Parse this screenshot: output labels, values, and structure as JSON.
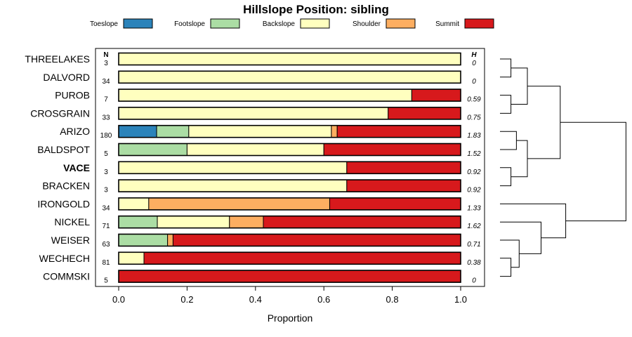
{
  "chart_data": {
    "type": "bar",
    "orientation": "horizontal",
    "stacked": true,
    "title": "Hillslope Position: sibling",
    "xlabel": "Proportion",
    "xlim": [
      0,
      1
    ],
    "x_ticks": [
      "0.0",
      "0.2",
      "0.4",
      "0.6",
      "0.8",
      "1.0"
    ],
    "x_tick_values": [
      0,
      0.2,
      0.4,
      0.6,
      0.8,
      1.0
    ],
    "n_header": "N",
    "h_header": "H",
    "legend_position": "top",
    "legend": [
      {
        "name": "Toeslope",
        "color": "#2b83ba"
      },
      {
        "name": "Footslope",
        "color": "#abdda4"
      },
      {
        "name": "Backslope",
        "color": "#ffffbf"
      },
      {
        "name": "Shoulder",
        "color": "#fdae61"
      },
      {
        "name": "Summit",
        "color": "#d7191c"
      }
    ],
    "categories": [
      {
        "name": "THREELAKES",
        "n": "3",
        "h": "0",
        "bold": false,
        "values": [
          0,
          0,
          1.0,
          0,
          0
        ]
      },
      {
        "name": "DALVORD",
        "n": "34",
        "h": "0",
        "bold": false,
        "values": [
          0,
          0,
          1.0,
          0,
          0
        ]
      },
      {
        "name": "PUROB",
        "n": "7",
        "h": "0.59",
        "bold": false,
        "values": [
          0,
          0,
          0.857,
          0,
          0.143
        ]
      },
      {
        "name": "CROSGRAIN",
        "n": "33",
        "h": "0.75",
        "bold": false,
        "values": [
          0,
          0,
          0.788,
          0,
          0.212
        ]
      },
      {
        "name": "ARIZO",
        "n": "180",
        "h": "1.83",
        "bold": false,
        "values": [
          0.111,
          0.094,
          0.417,
          0.017,
          0.361
        ]
      },
      {
        "name": "BALDSPOT",
        "n": "5",
        "h": "1.52",
        "bold": false,
        "values": [
          0,
          0.2,
          0.4,
          0,
          0.4
        ]
      },
      {
        "name": "VACE",
        "n": "3",
        "h": "0.92",
        "bold": true,
        "values": [
          0,
          0,
          0.667,
          0,
          0.333
        ]
      },
      {
        "name": "BRACKEN",
        "n": "3",
        "h": "0.92",
        "bold": false,
        "values": [
          0,
          0,
          0.667,
          0,
          0.333
        ]
      },
      {
        "name": "IRONGOLD",
        "n": "34",
        "h": "1.33",
        "bold": false,
        "values": [
          0,
          0,
          0.088,
          0.529,
          0.383
        ]
      },
      {
        "name": "NICKEL",
        "n": "71",
        "h": "1.62",
        "bold": false,
        "values": [
          0,
          0.113,
          0.211,
          0.099,
          0.577
        ]
      },
      {
        "name": "WEISER",
        "n": "63",
        "h": "0.71",
        "bold": false,
        "values": [
          0,
          0.143,
          0,
          0.016,
          0.841
        ]
      },
      {
        "name": "WECHECH",
        "n": "81",
        "h": "0.38",
        "bold": false,
        "values": [
          0,
          0,
          0.074,
          0,
          0.926
        ]
      },
      {
        "name": "COMMSKI",
        "n": "5",
        "h": "0",
        "bold": false,
        "values": [
          0,
          0,
          0,
          0,
          1.0
        ]
      }
    ],
    "dendrogram": {
      "leaf_order": [
        "THREELAKES",
        "DALVORD",
        "PUROB",
        "CROSGRAIN",
        "ARIZO",
        "BALDSPOT",
        "VACE",
        "BRACKEN",
        "IRONGOLD",
        "NICKEL",
        "WEISER",
        "WECHECH",
        "COMMSKI"
      ],
      "merges": [
        {
          "a": "L0",
          "b": "L1",
          "height": 0.02
        },
        {
          "a": "L2",
          "b": "L3",
          "height": 0.02
        },
        {
          "a": "M0",
          "b": "M1",
          "height": 0.05
        },
        {
          "a": "L4",
          "b": "L5",
          "height": 0.03
        },
        {
          "a": "L6",
          "b": "L7",
          "height": 0.02
        },
        {
          "a": "M3",
          "b": "M4",
          "height": 0.05
        },
        {
          "a": "M2",
          "b": "M5",
          "height": 0.11
        },
        {
          "a": "L11",
          "b": "L12",
          "height": 0.02
        },
        {
          "a": "L10",
          "b": "M7",
          "height": 0.035
        },
        {
          "a": "L9",
          "b": "M8",
          "height": 0.075
        },
        {
          "a": "L8",
          "b": "M9",
          "height": 0.12
        },
        {
          "a": "M6",
          "b": "M10",
          "height": 0.23
        }
      ]
    }
  }
}
